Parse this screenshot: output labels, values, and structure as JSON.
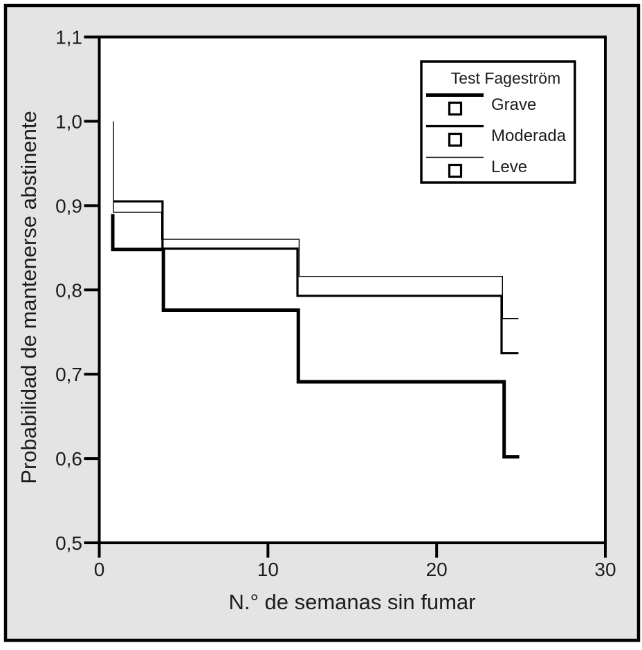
{
  "figure": {
    "background_color": "#e4e4e4",
    "frame_color": "#000000",
    "plot_background": "#ffffff",
    "line_color": "#000000"
  },
  "chart_data": {
    "type": "line",
    "subtype": "step-function-survival",
    "title": "",
    "xlabel": "N.° de semanas sin fumar",
    "ylabel": "Probabilidad de mantenerse abstinente",
    "xlim": [
      0,
      30
    ],
    "ylim": [
      0.5,
      1.1
    ],
    "grid": false,
    "x_ticks": [
      {
        "value": 0,
        "label": "0"
      },
      {
        "value": 10,
        "label": "10"
      },
      {
        "value": 20,
        "label": "20"
      },
      {
        "value": 30,
        "label": "30"
      }
    ],
    "y_ticks": [
      {
        "value": 1.1,
        "label": "1,1"
      },
      {
        "value": 1.0,
        "label": "1,0"
      },
      {
        "value": 0.9,
        "label": "0,9"
      },
      {
        "value": 0.8,
        "label": "0,8"
      },
      {
        "value": 0.7,
        "label": "0,7"
      },
      {
        "value": 0.6,
        "label": "0,6"
      },
      {
        "value": 0.5,
        "label": "0,5"
      }
    ],
    "legend_title": "Test Fageström",
    "legend_position": "top-right",
    "legend_marker": "open-square",
    "series": [
      {
        "name": "Leve",
        "line_width": 1.4,
        "color": "#000000",
        "steps": [
          [
            0.84,
            1.0
          ],
          [
            0.84,
            0.892
          ],
          [
            3.7,
            0.892
          ],
          [
            3.7,
            0.86
          ],
          [
            11.85,
            0.86
          ],
          [
            11.85,
            0.816
          ],
          [
            23.9,
            0.816
          ],
          [
            23.9,
            0.766
          ],
          [
            24.85,
            0.766
          ]
        ]
      },
      {
        "name": "Moderada",
        "line_width": 3.2,
        "color": "#000000",
        "steps": [
          [
            0.82,
            0.905
          ],
          [
            3.75,
            0.905
          ],
          [
            3.75,
            0.849
          ],
          [
            11.75,
            0.849
          ],
          [
            11.75,
            0.793
          ],
          [
            23.85,
            0.793
          ],
          [
            23.85,
            0.725
          ],
          [
            24.85,
            0.725
          ]
        ]
      },
      {
        "name": "Grave",
        "line_width": 5,
        "color": "#000000",
        "steps": [
          [
            0.8,
            0.89
          ],
          [
            0.8,
            0.848
          ],
          [
            3.8,
            0.848
          ],
          [
            3.8,
            0.776
          ],
          [
            11.8,
            0.776
          ],
          [
            11.8,
            0.691
          ],
          [
            24.0,
            0.691
          ],
          [
            24.0,
            0.602
          ],
          [
            24.9,
            0.602
          ]
        ]
      }
    ],
    "legend_order": [
      "Grave",
      "Moderada",
      "Leve"
    ]
  }
}
